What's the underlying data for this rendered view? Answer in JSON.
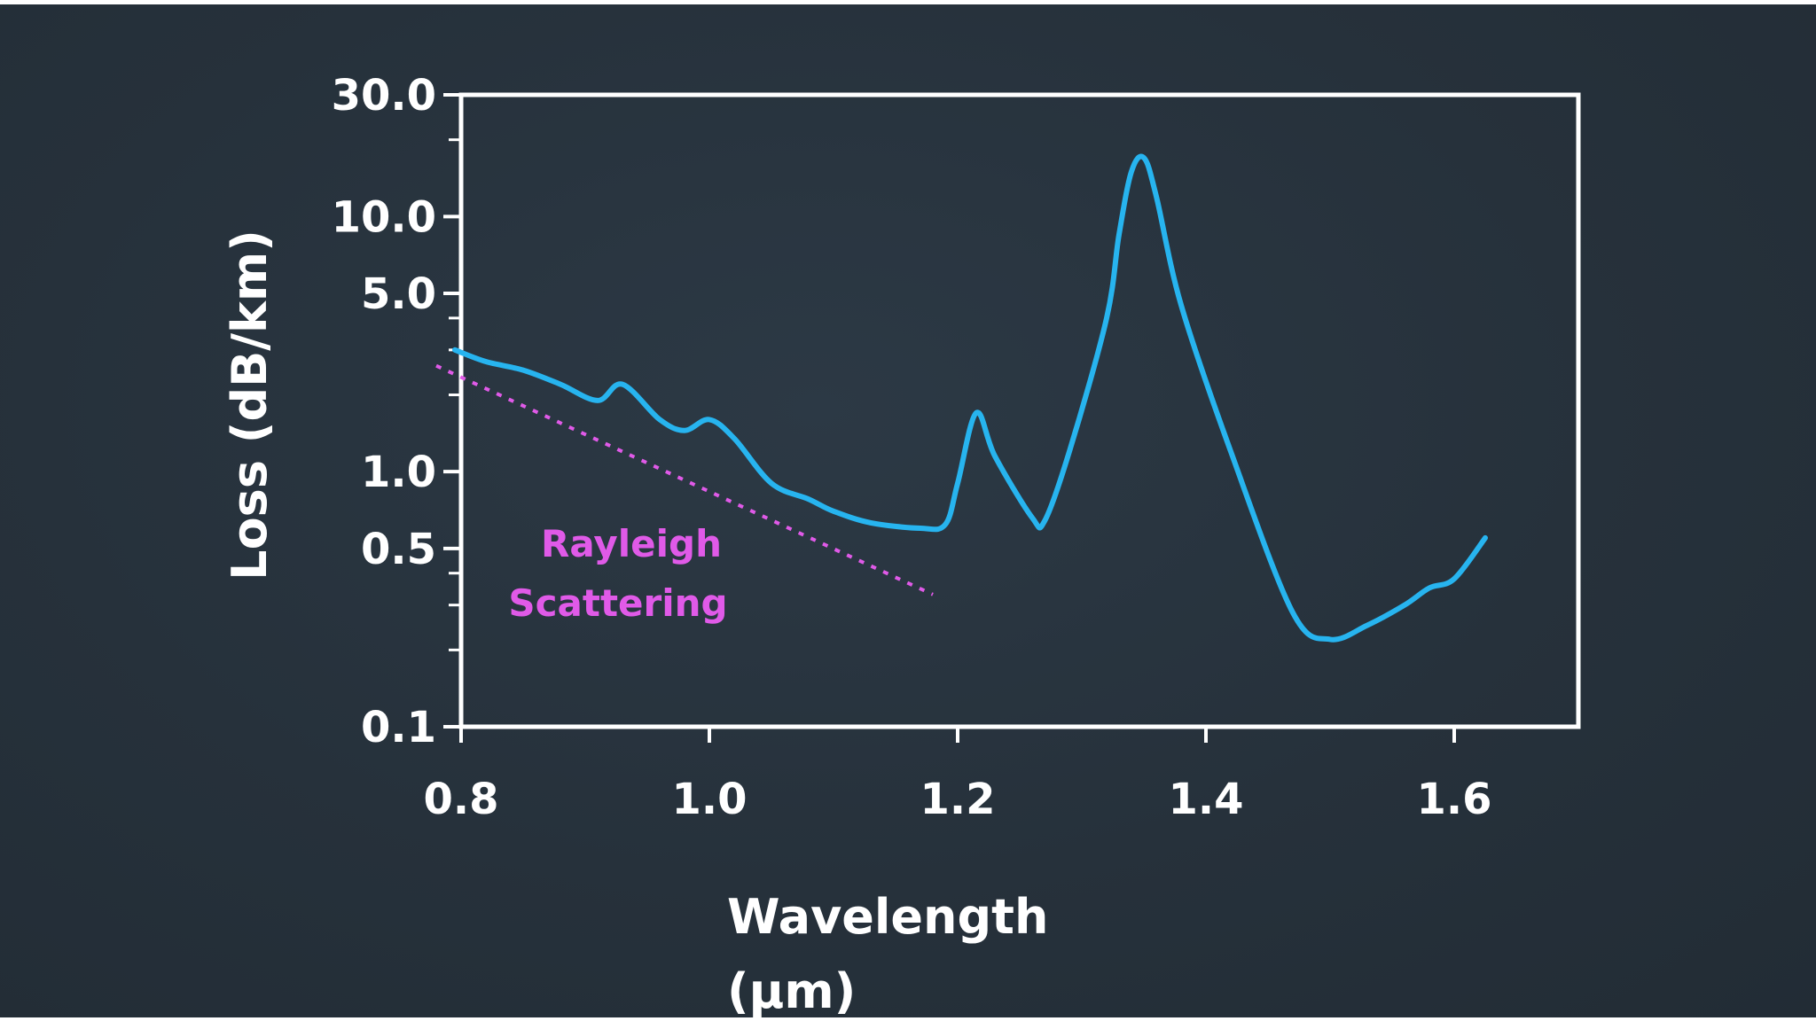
{
  "colors": {
    "background": "#27333e",
    "axis": "#ffffff",
    "loss_curve": "#27b4ef",
    "rayleigh": "#e05ae8"
  },
  "chart_data": {
    "type": "line",
    "title": "",
    "xlabel_line1": "Wavelength",
    "xlabel_line2": "(μm)",
    "ylabel": "Loss (dB/km)",
    "xlim": [
      0.8,
      1.7
    ],
    "ylim": [
      0.1,
      30
    ],
    "yscale": "log",
    "grid": false,
    "xticks": [
      0.8,
      1.0,
      1.2,
      1.4,
      1.6
    ],
    "xtick_labels": [
      "0.8",
      "1.0",
      "1.2",
      "1.4",
      "1.6"
    ],
    "yticks": [
      0.1,
      0.5,
      1.0,
      5.0,
      10.0,
      30.0
    ],
    "ytick_labels": [
      "0.1",
      "0.5",
      "1.0",
      "5.0",
      "10.0",
      "30.0"
    ],
    "yminor_ticks": [
      0.2,
      0.3,
      0.4,
      2,
      3,
      4,
      20
    ],
    "series": [
      {
        "x": [
          0.795,
          0.82,
          0.85,
          0.88,
          0.91,
          0.93,
          0.96,
          0.98,
          1.0,
          1.02,
          1.05,
          1.08,
          1.1,
          1.13,
          1.17,
          1.19,
          1.2,
          1.215,
          1.23,
          1.26,
          1.27,
          1.29,
          1.32,
          1.33,
          1.34,
          1.35,
          1.36,
          1.38,
          1.42,
          1.47,
          1.5,
          1.53,
          1.56,
          1.58,
          1.6,
          1.625
        ],
        "values": [
          3.0,
          2.7,
          2.5,
          2.2,
          1.9,
          2.2,
          1.6,
          1.45,
          1.6,
          1.35,
          0.9,
          0.78,
          0.7,
          0.63,
          0.6,
          0.62,
          0.9,
          1.7,
          1.15,
          0.66,
          0.64,
          1.2,
          4.0,
          8.5,
          15.0,
          17.0,
          12.0,
          4.5,
          1.2,
          0.28,
          0.22,
          0.25,
          0.3,
          0.35,
          0.38,
          0.55
        ]
      },
      {
        "name": "Rayleigh Scattering",
        "style": "dotted",
        "x": [
          0.78,
          1.18
        ],
        "values": [
          2.6,
          0.33
        ]
      }
    ],
    "annotations": [
      {
        "line1": "Rayleigh",
        "line2": "Scattering"
      }
    ]
  }
}
